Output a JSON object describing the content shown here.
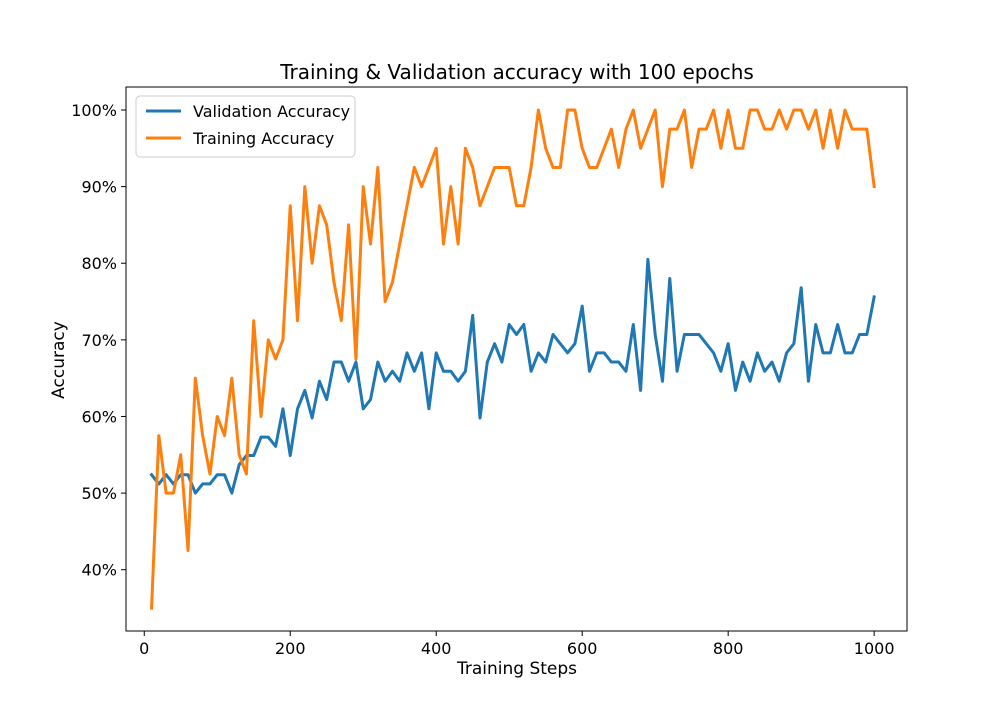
{
  "chart_data": {
    "type": "line",
    "title": "Training & Validation accuracy with 100 epochs",
    "xlabel": "Training Steps",
    "ylabel": "Accuracy",
    "xlim": [
      -25,
      1045
    ],
    "ylim": [
      0.32,
      1.03
    ],
    "x_ticks": [
      0,
      200,
      400,
      600,
      800,
      1000
    ],
    "x_tick_labels": [
      "0",
      "200",
      "400",
      "600",
      "800",
      "1000"
    ],
    "y_ticks": [
      0.4,
      0.5,
      0.6,
      0.7,
      0.8,
      0.9,
      1.0
    ],
    "y_tick_labels": [
      "40%",
      "50%",
      "60%",
      "70%",
      "80%",
      "90%",
      "100%"
    ],
    "grid": false,
    "legend_position": "top-left",
    "x": [
      10,
      20,
      30,
      40,
      50,
      60,
      70,
      80,
      90,
      100,
      110,
      120,
      130,
      140,
      150,
      160,
      170,
      180,
      190,
      200,
      210,
      220,
      230,
      240,
      250,
      260,
      270,
      280,
      290,
      300,
      310,
      320,
      330,
      340,
      350,
      360,
      370,
      380,
      390,
      400,
      410,
      420,
      430,
      440,
      450,
      460,
      470,
      480,
      490,
      500,
      510,
      520,
      530,
      540,
      550,
      560,
      570,
      580,
      590,
      600,
      610,
      620,
      630,
      640,
      650,
      660,
      670,
      680,
      690,
      700,
      710,
      720,
      730,
      740,
      750,
      760,
      770,
      780,
      790,
      800,
      810,
      820,
      830,
      840,
      850,
      860,
      870,
      880,
      890,
      900,
      910,
      920,
      930,
      940,
      950,
      960,
      970,
      980,
      990,
      1000
    ],
    "series": [
      {
        "name": "Validation Accuracy",
        "color": "#1f77b4",
        "values": [
          0.524,
          0.512,
          0.524,
          0.512,
          0.524,
          0.524,
          0.5,
          0.512,
          0.512,
          0.524,
          0.524,
          0.5,
          0.537,
          0.549,
          0.549,
          0.573,
          0.573,
          0.561,
          0.61,
          0.549,
          0.61,
          0.634,
          0.598,
          0.646,
          0.622,
          0.671,
          0.671,
          0.646,
          0.671,
          0.61,
          0.622,
          0.671,
          0.646,
          0.659,
          0.646,
          0.683,
          0.659,
          0.683,
          0.61,
          0.683,
          0.659,
          0.659,
          0.646,
          0.659,
          0.732,
          0.598,
          0.671,
          0.695,
          0.671,
          0.72,
          0.707,
          0.72,
          0.659,
          0.683,
          0.671,
          0.707,
          0.695,
          0.683,
          0.695,
          0.744,
          0.659,
          0.683,
          0.683,
          0.671,
          0.671,
          0.659,
          0.72,
          0.634,
          0.805,
          0.707,
          0.646,
          0.78,
          0.659,
          0.707,
          0.707,
          0.707,
          0.695,
          0.683,
          0.659,
          0.695,
          0.634,
          0.671,
          0.646,
          0.683,
          0.659,
          0.671,
          0.646,
          0.683,
          0.695,
          0.768,
          0.646,
          0.72,
          0.683,
          0.683,
          0.72,
          0.683,
          0.683,
          0.707,
          0.707,
          0.756
        ]
      },
      {
        "name": "Training Accuracy",
        "color": "#ff7f0e",
        "values": [
          0.35,
          0.575,
          0.5,
          0.5,
          0.55,
          0.425,
          0.65,
          0.575,
          0.525,
          0.6,
          0.575,
          0.65,
          0.55,
          0.525,
          0.725,
          0.6,
          0.7,
          0.675,
          0.7,
          0.875,
          0.725,
          0.9,
          0.8,
          0.875,
          0.85,
          0.775,
          0.725,
          0.85,
          0.675,
          0.9,
          0.825,
          0.925,
          0.75,
          0.775,
          0.825,
          0.875,
          0.925,
          0.9,
          0.925,
          0.95,
          0.825,
          0.9,
          0.825,
          0.95,
          0.925,
          0.875,
          0.9,
          0.925,
          0.925,
          0.925,
          0.875,
          0.875,
          0.925,
          1.0,
          0.95,
          0.925,
          0.925,
          1.0,
          1.0,
          0.95,
          0.925,
          0.925,
          0.95,
          0.975,
          0.925,
          0.975,
          1.0,
          0.95,
          0.975,
          1.0,
          0.9,
          0.975,
          0.975,
          1.0,
          0.925,
          0.975,
          0.975,
          1.0,
          0.95,
          1.0,
          0.95,
          0.95,
          1.0,
          1.0,
          0.975,
          0.975,
          1.0,
          0.975,
          1.0,
          1.0,
          0.975,
          1.0,
          0.95,
          1.0,
          0.95,
          1.0,
          0.975,
          0.975,
          0.975,
          0.9
        ]
      }
    ]
  }
}
